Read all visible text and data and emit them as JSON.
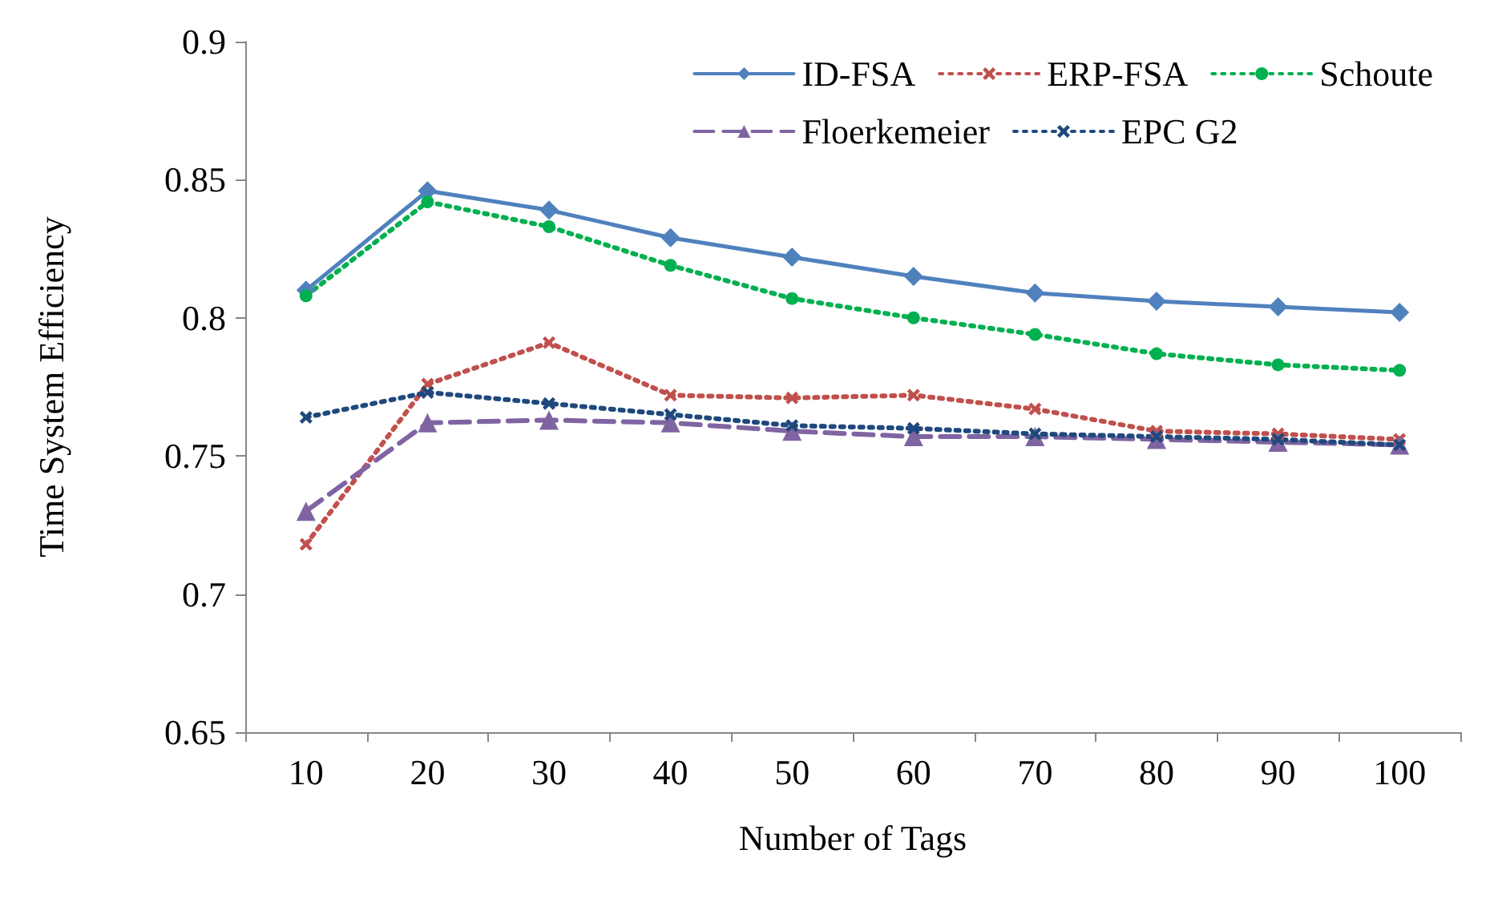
{
  "chart_data": {
    "type": "line",
    "xlabel": "Number of Tags",
    "ylabel": "Time System Efficiency",
    "categories": [
      "10",
      "20",
      "30",
      "40",
      "50",
      "60",
      "70",
      "80",
      "90",
      "100"
    ],
    "series": [
      {
        "name": "ID-FSA",
        "color": "#4f81bd",
        "marker": "diamond",
        "line_style": "solid",
        "values": [
          0.81,
          0.846,
          0.839,
          0.829,
          0.822,
          0.815,
          0.809,
          0.806,
          0.804,
          0.802
        ]
      },
      {
        "name": "ERP-FSA",
        "color": "#c0504d",
        "marker": "cross",
        "line_style": "dotted",
        "values": [
          0.718,
          0.776,
          0.791,
          0.772,
          0.771,
          0.772,
          0.767,
          0.759,
          0.758,
          0.756
        ]
      },
      {
        "name": "Schoute",
        "color": "#00b050",
        "marker": "circle",
        "line_style": "dotted",
        "values": [
          0.808,
          0.842,
          0.833,
          0.819,
          0.807,
          0.8,
          0.794,
          0.787,
          0.783,
          0.781
        ]
      },
      {
        "name": "Floerkemeier",
        "color": "#8064a2",
        "marker": "triangle",
        "line_style": "dashed",
        "values": [
          0.73,
          0.762,
          0.763,
          0.762,
          0.759,
          0.757,
          0.757,
          0.756,
          0.755,
          0.754
        ]
      },
      {
        "name": "EPC G2",
        "color": "#1f497d",
        "marker": "cross",
        "line_style": "dotted",
        "values": [
          0.764,
          0.773,
          0.769,
          0.765,
          0.761,
          0.76,
          0.758,
          0.757,
          0.756,
          0.754
        ]
      }
    ],
    "ylim": [
      0.65,
      0.9
    ],
    "yticks": [
      0.65,
      0.7,
      0.75,
      0.8,
      0.85,
      0.9
    ],
    "grid": false,
    "legend": "top right"
  }
}
